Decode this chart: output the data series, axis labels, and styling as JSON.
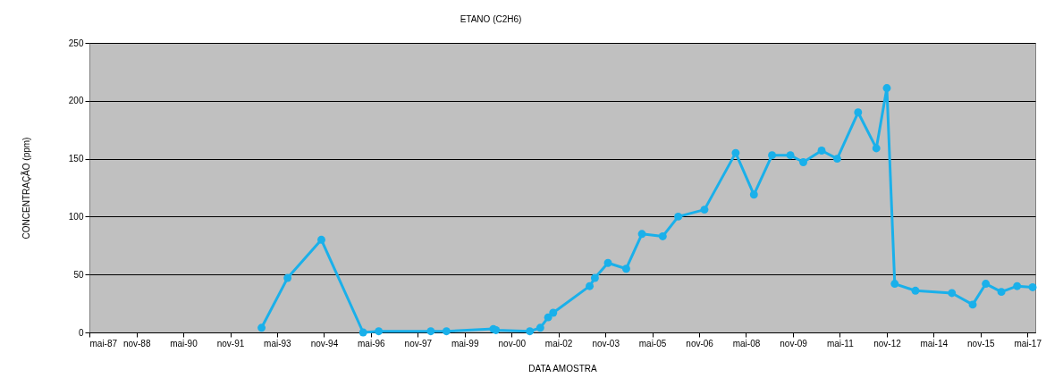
{
  "chart_data": {
    "type": "line",
    "title": "ETANO (C2H6)",
    "xlabel": "DATA AMOSTRA",
    "ylabel": "CONCENTRAÇÃO (ppm)",
    "x": [
      "1992-11",
      "1993-09",
      "1994-10",
      "1996-02",
      "1996-08",
      "1998-04",
      "1998-10",
      "2000-04",
      "2000-05",
      "2001-06",
      "2001-10",
      "2002-01",
      "2002-03",
      "2003-05",
      "2003-07",
      "2003-12",
      "2004-07",
      "2005-01",
      "2005-09",
      "2006-03",
      "2007-01",
      "2008-01",
      "2008-08",
      "2009-03",
      "2009-10",
      "2010-03",
      "2010-10",
      "2011-04",
      "2011-12",
      "2012-07",
      "2012-11",
      "2013-02",
      "2013-10",
      "2014-12",
      "2015-08",
      "2016-01",
      "2016-07",
      "2017-01",
      "2017-07"
    ],
    "series": [
      {
        "color": "#1ab0ea",
        "values": [
          4,
          47,
          80,
          0,
          1,
          1,
          1,
          3,
          2,
          1,
          4,
          13,
          17,
          40,
          47,
          60,
          55,
          85,
          83,
          100,
          106,
          155,
          119,
          153,
          153,
          147,
          157,
          150,
          190,
          159,
          211,
          42,
          36,
          34,
          24,
          42,
          35,
          40,
          39
        ]
      }
    ],
    "xlim": [
      "1987-05",
      "2017-08"
    ],
    "xticks": [
      {
        "value": "1987-05",
        "label": "mai-87"
      },
      {
        "value": "1988-11",
        "label": "nov-88"
      },
      {
        "value": "1990-05",
        "label": "mai-90"
      },
      {
        "value": "1991-11",
        "label": "nov-91"
      },
      {
        "value": "1993-05",
        "label": "mai-93"
      },
      {
        "value": "1994-11",
        "label": "nov-94"
      },
      {
        "value": "1996-05",
        "label": "mai-96"
      },
      {
        "value": "1997-11",
        "label": "nov-97"
      },
      {
        "value": "1999-05",
        "label": "mai-99"
      },
      {
        "value": "2000-11",
        "label": "nov-00"
      },
      {
        "value": "2002-05",
        "label": "mai-02"
      },
      {
        "value": "2003-11",
        "label": "nov-03"
      },
      {
        "value": "2005-05",
        "label": "mai-05"
      },
      {
        "value": "2006-11",
        "label": "nov-06"
      },
      {
        "value": "2008-05",
        "label": "mai-08"
      },
      {
        "value": "2009-11",
        "label": "nov-09"
      },
      {
        "value": "2011-05",
        "label": "mai-11"
      },
      {
        "value": "2012-11",
        "label": "nov-12"
      },
      {
        "value": "2014-05",
        "label": "mai-14"
      },
      {
        "value": "2015-11",
        "label": "nov-15"
      },
      {
        "value": "2017-05",
        "label": "mai-17"
      }
    ],
    "ylim": [
      0,
      250
    ],
    "yticks": [
      0,
      50,
      100,
      150,
      200,
      250
    ],
    "grid": "y",
    "marker": "circle",
    "line_style": "solid"
  }
}
